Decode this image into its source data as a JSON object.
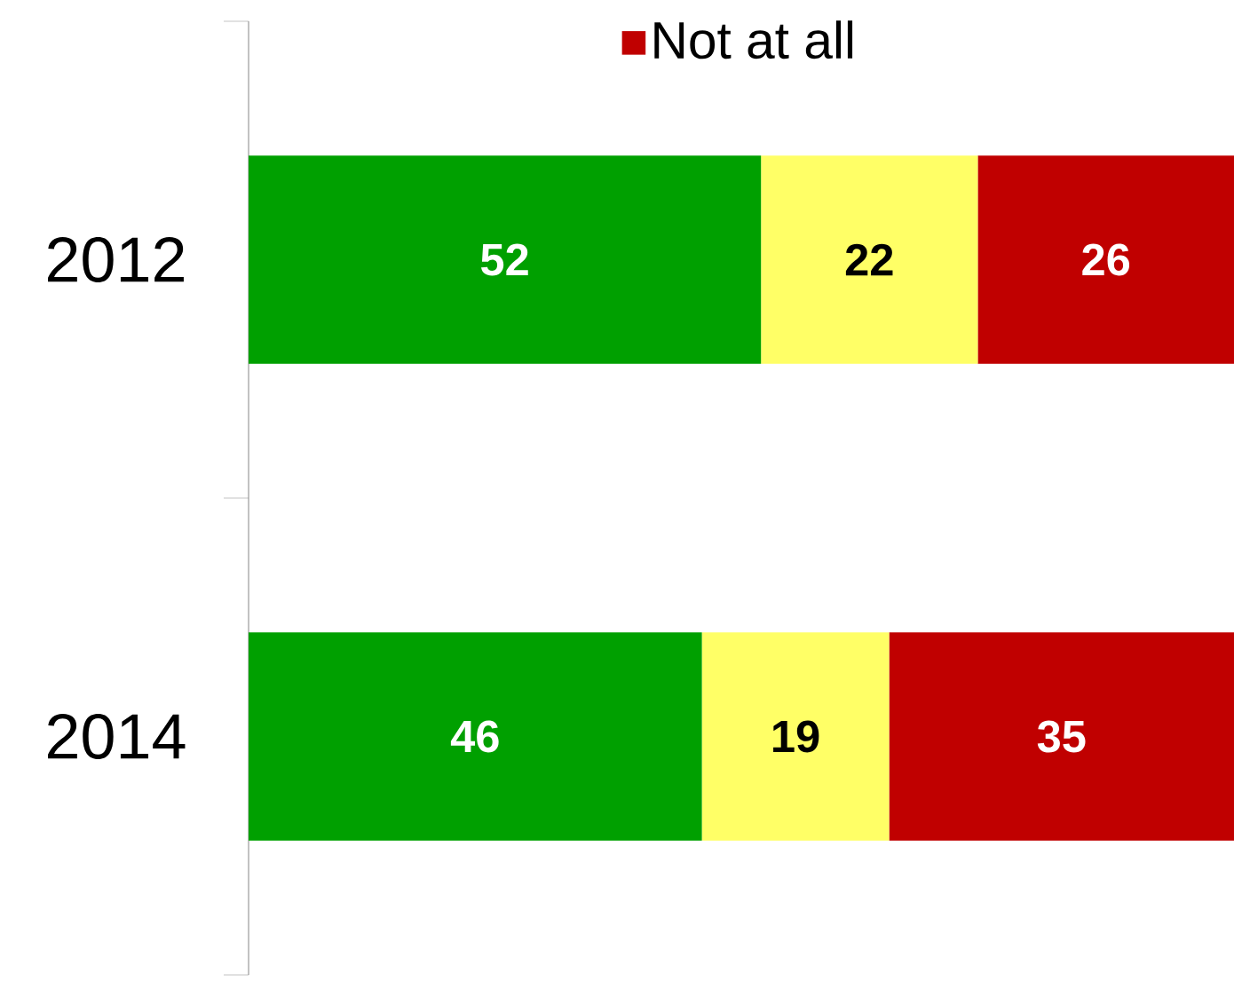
{
  "chart_data": {
    "type": "bar",
    "orientation": "horizontal",
    "stacked": true,
    "categories": [
      "2012",
      "2014"
    ],
    "series": [
      {
        "color": "#00a000",
        "values": [
          52,
          46
        ]
      },
      {
        "color": "#ffff66",
        "values": [
          22,
          19
        ]
      },
      {
        "name": "Not at all",
        "color": "#c00000",
        "values": [
          26,
          35
        ]
      }
    ],
    "data_labels": true,
    "tick_labels": "y",
    "legend": "top"
  }
}
